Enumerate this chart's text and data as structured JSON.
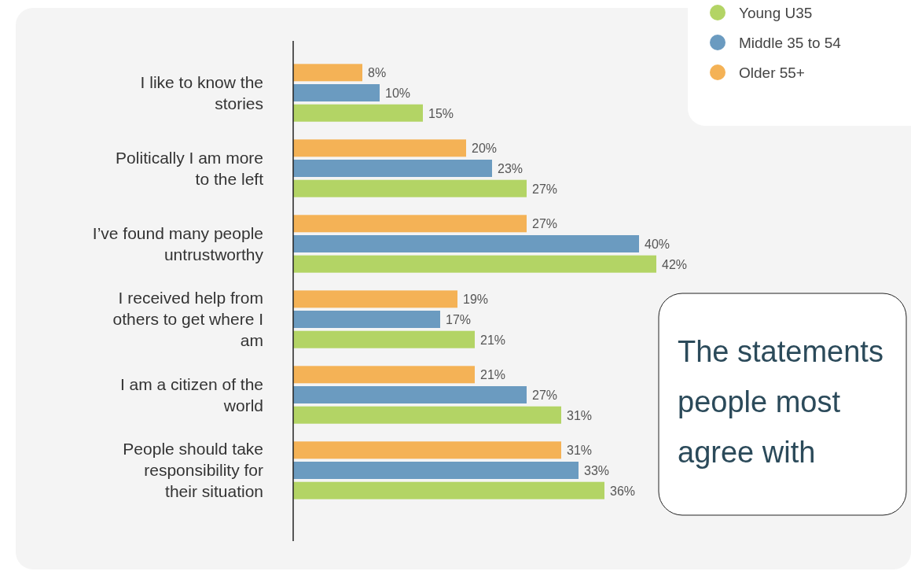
{
  "chart_data": {
    "type": "bar",
    "orientation": "horizontal",
    "categories": [
      "I like to know the stories",
      "Politically I am more to the left",
      "I’ve found many people untrustworthy",
      "I received help from others to get where I am",
      "I am a citizen of the world",
      "People should take responsibility for their situation"
    ],
    "series": [
      {
        "name": "Young U35",
        "color": "#b3d465",
        "values": [
          15,
          27,
          42,
          21,
          31,
          36
        ],
        "value_labels": [
          "15%",
          "27%",
          "42%",
          "21%",
          "31%",
          "36%"
        ]
      },
      {
        "name": "Middle 35 to 54",
        "color": "#6b9bc0",
        "values": [
          10,
          23,
          40,
          17,
          27,
          33
        ],
        "value_labels": [
          "10%",
          "23%",
          "40%",
          "17%",
          "27%",
          "33%"
        ]
      },
      {
        "name": "Older 55+",
        "color": "#f4b256",
        "values": [
          8,
          20,
          27,
          19,
          21,
          31
        ],
        "value_labels": [
          "8%",
          "20%",
          "27%",
          "19%",
          "21%",
          "31%"
        ]
      }
    ],
    "legend": "top right",
    "annotations": [
      "The statements people most agree with"
    ]
  }
}
